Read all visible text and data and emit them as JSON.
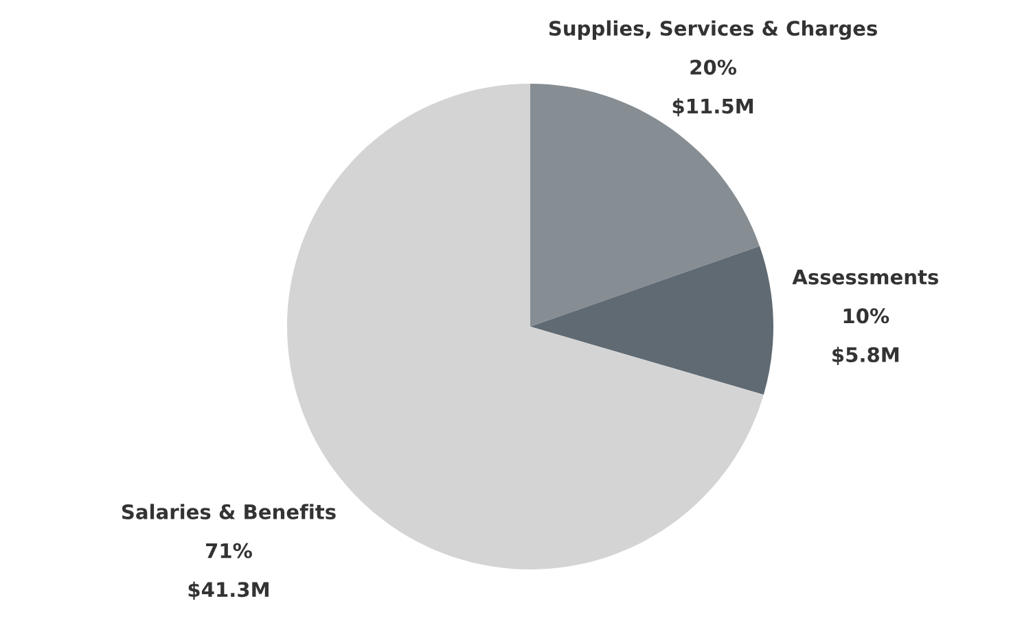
{
  "chart_data": {
    "type": "pie",
    "categories": [
      "Supplies, Services & Charges",
      "Assessments",
      "Salaries & Benefits"
    ],
    "values": [
      11.5,
      5.8,
      41.3
    ],
    "colors": [
      "#868e94",
      "#606a73",
      "#d4d4d4"
    ],
    "value_labels": [
      "$11.5M",
      "$5.8M",
      "$41.3M"
    ],
    "annotations": [
      "20%",
      "10%",
      "71%"
    ]
  }
}
